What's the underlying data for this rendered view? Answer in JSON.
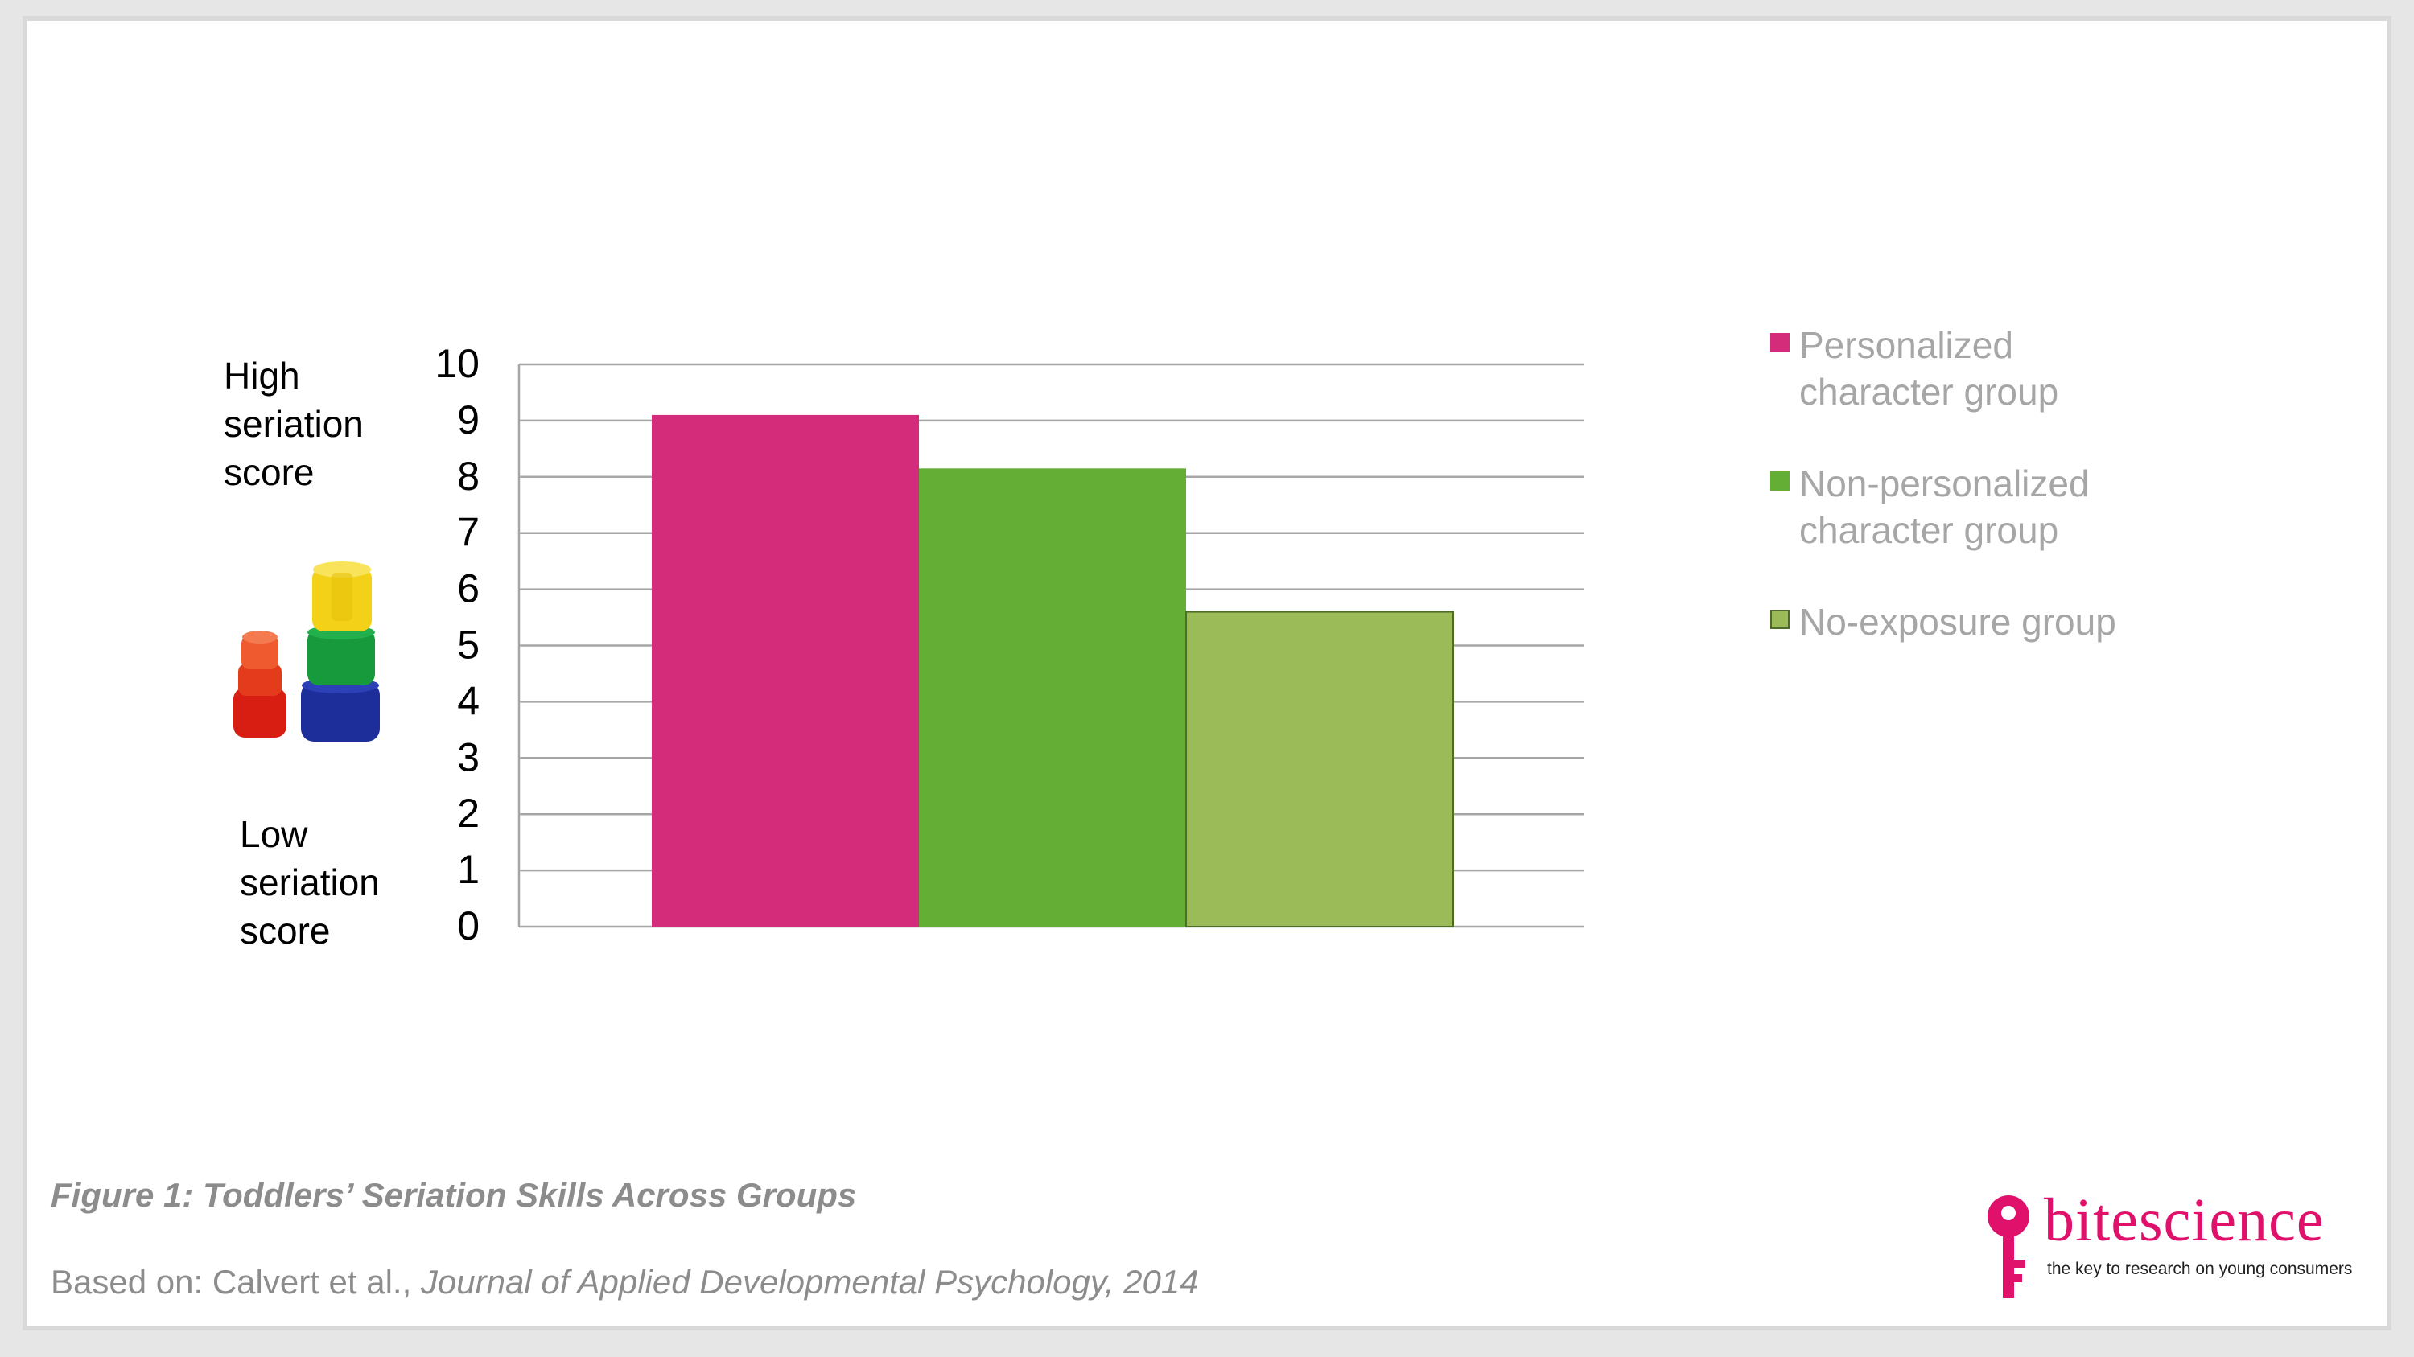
{
  "chart_data": {
    "type": "bar",
    "categories": [
      "Personalized character group",
      "Non-personalized character group",
      "No-exposure group"
    ],
    "values": [
      9.1,
      8.15,
      5.6
    ],
    "colors": [
      "#d42b7a",
      "#64ae36",
      "#9bbb59"
    ],
    "ylim": [
      0,
      10
    ],
    "yticks": [
      "0",
      "1",
      "2",
      "3",
      "4",
      "5",
      "6",
      "7",
      "8",
      "9",
      "10"
    ],
    "grid": true,
    "legend_position": "right",
    "legend": [
      {
        "line1": "Personalized",
        "line2": "character group"
      },
      {
        "line1": "Non-personalized",
        "line2": "character group"
      },
      {
        "line1": "No-exposure group",
        "line2": ""
      }
    ]
  },
  "labels": {
    "high": [
      "High",
      "seriation",
      "score"
    ],
    "low": [
      "Low",
      "seriation",
      "score"
    ]
  },
  "caption": "Figure 1: Toddlers’ Seriation Skills Across Groups",
  "source_prefix": "Based on: Calvert et al., ",
  "source_journal": "Journal of Applied Developmental Psychology, 2014",
  "logo": {
    "bite": "bite",
    "science": "science",
    "tagline": "the key to research on young consumers",
    "color": "#e0116b"
  },
  "icons": [
    "stacking-cups-icon",
    "key-icon"
  ]
}
